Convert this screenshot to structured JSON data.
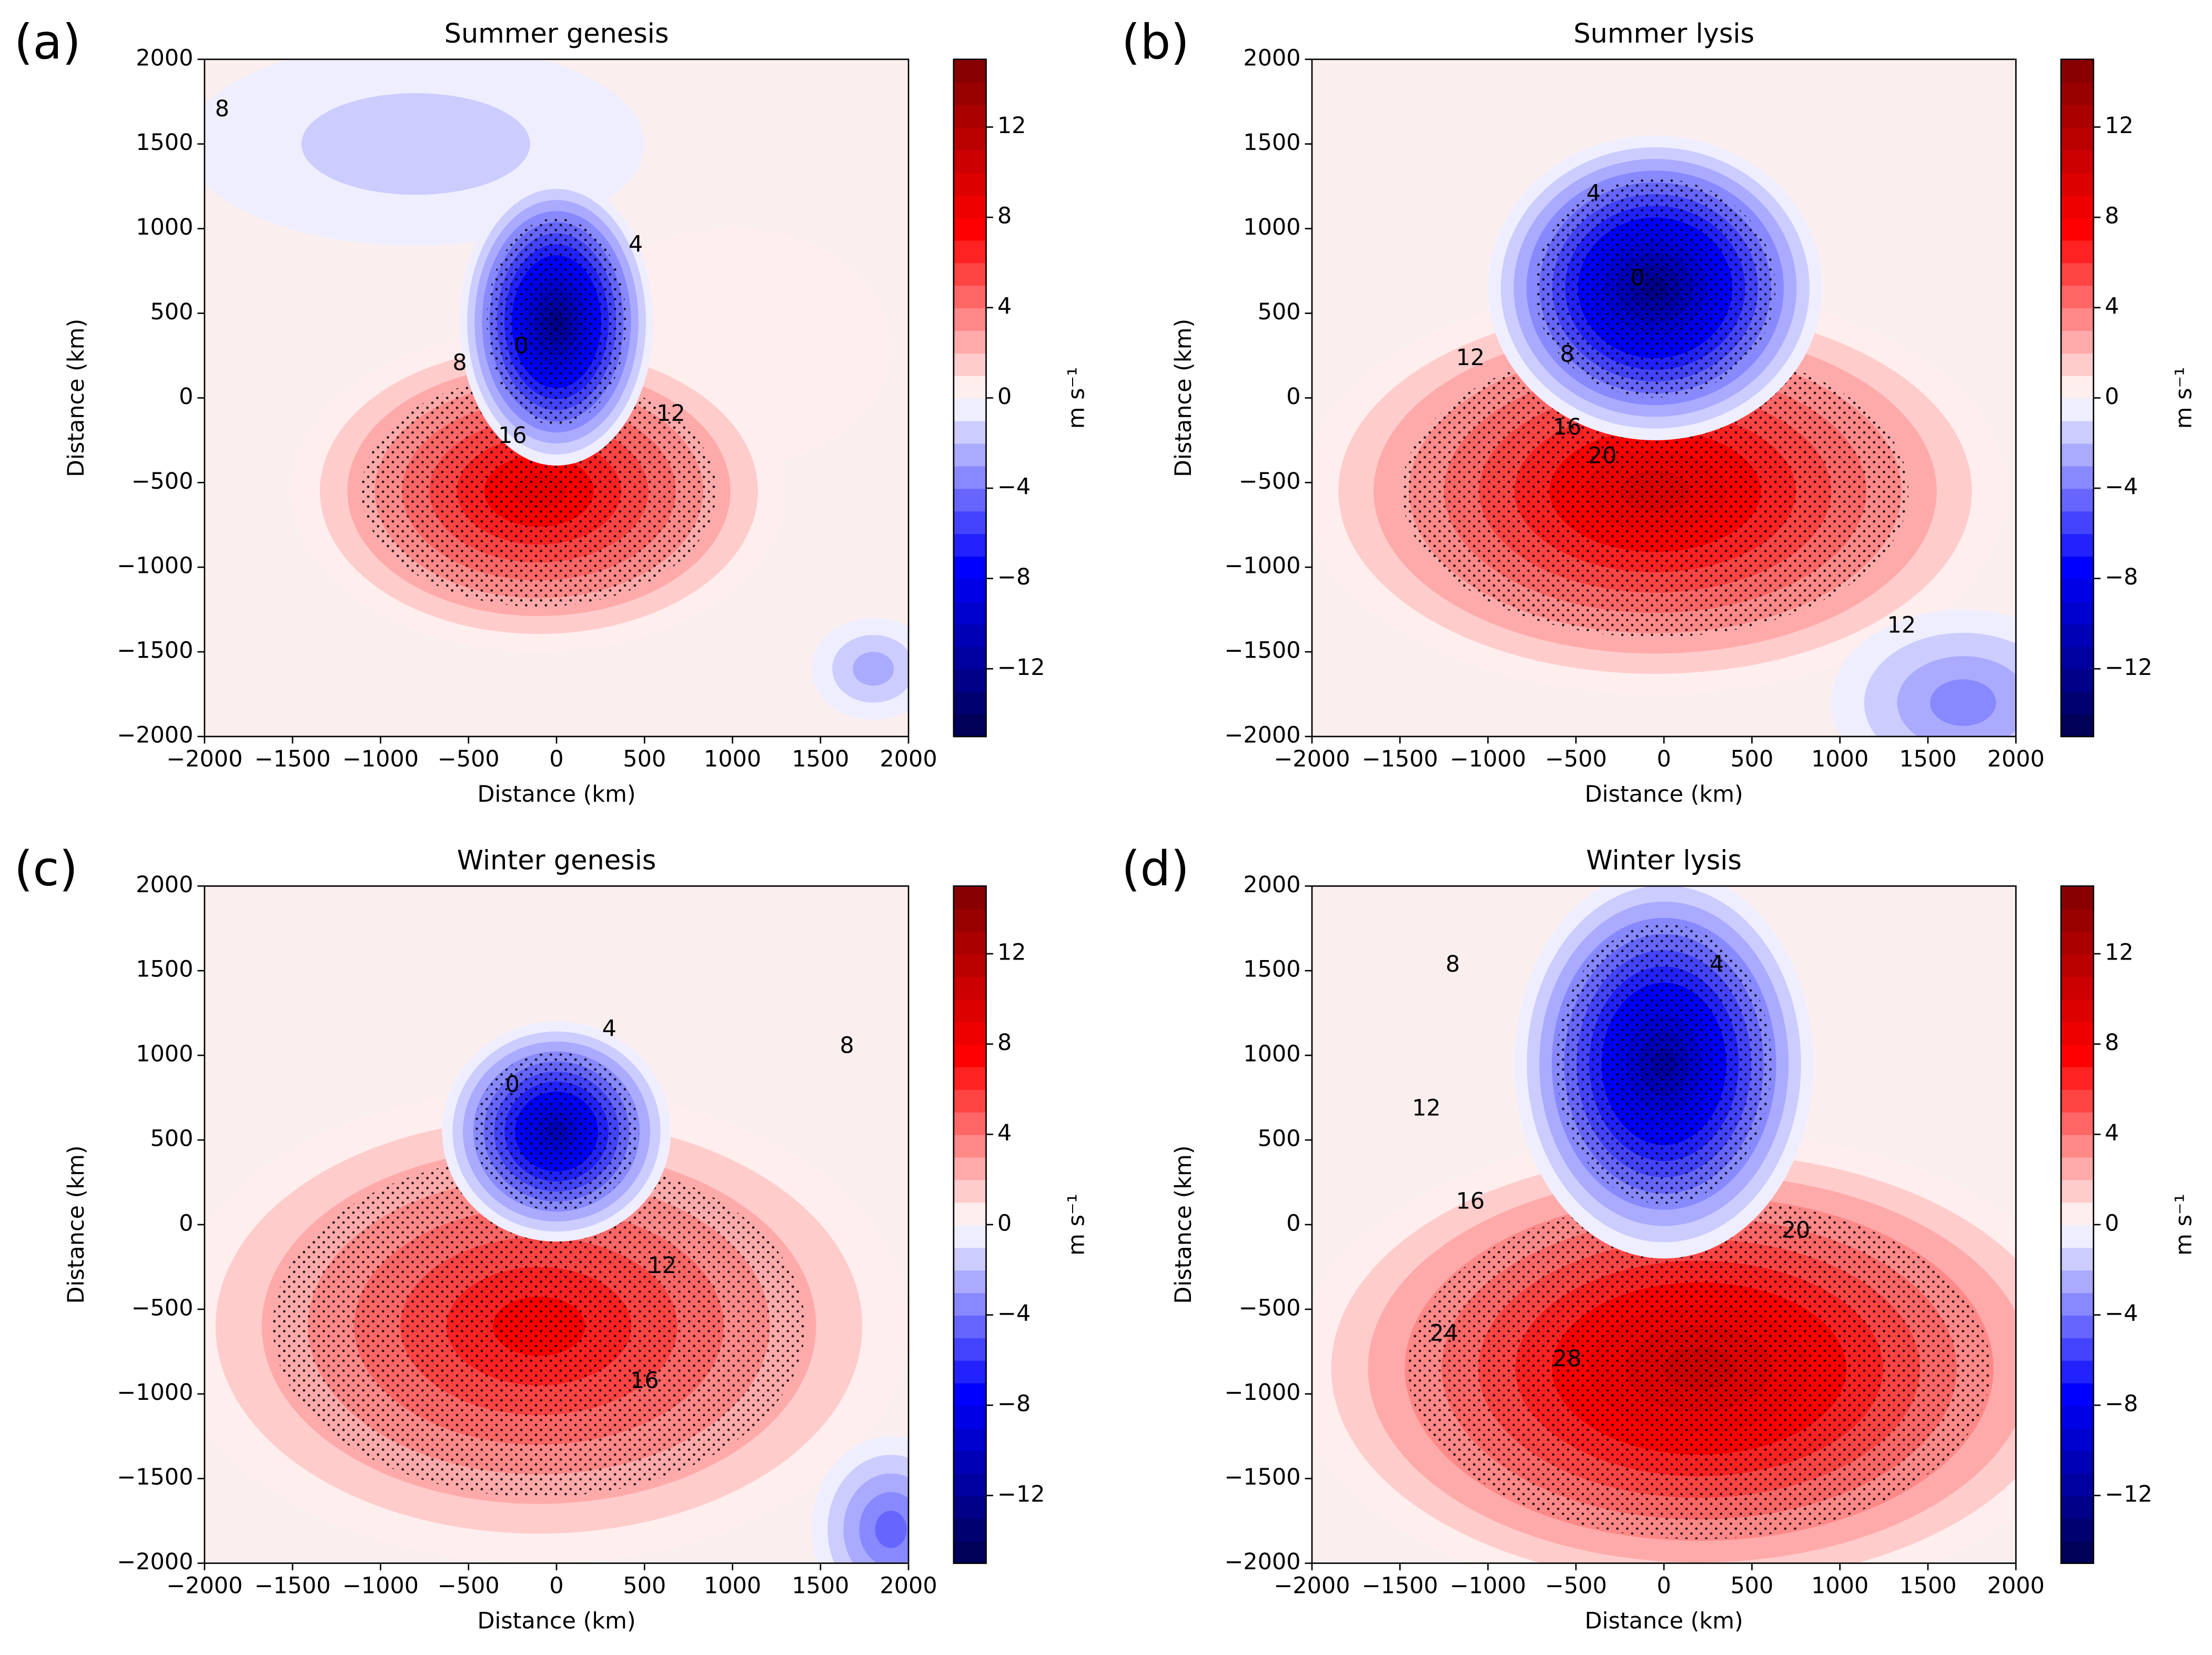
{
  "chart_data": [
    {
      "type": "contour",
      "panel_label": "(a)",
      "title": "Summer genesis",
      "xlabel": "Distance (km)",
      "ylabel": "Distance (km)",
      "xlim": [
        -2000,
        2000
      ],
      "ylim": [
        -2000,
        2000
      ],
      "xticks": [
        {
          "value": -2000,
          "label": "−2000"
        },
        {
          "value": -1500,
          "label": "−1500"
        },
        {
          "value": -1000,
          "label": "−1000"
        },
        {
          "value": -500,
          "label": "−500"
        },
        0,
        500,
        1000,
        1500,
        2000
      ],
      "yticks": [
        {
          "value": -2000,
          "label": "−2000"
        },
        {
          "value": -1500,
          "label": "−1500"
        },
        {
          "value": -1000,
          "label": "−1000"
        },
        {
          "value": -500,
          "label": "−500"
        },
        0,
        500,
        1000,
        1500,
        2000
      ],
      "field": [
        {
          "x": -800,
          "y": 1500,
          "rx": 1300,
          "ry": 600,
          "value": -2
        },
        {
          "x": 1000,
          "y": 300,
          "rx": 900,
          "ry": 700,
          "value": 1
        },
        {
          "x": -100,
          "y": -550,
          "rx": 1400,
          "ry": 950,
          "value": 9
        },
        {
          "x": 0,
          "y": 450,
          "rx": 550,
          "ry": 850,
          "value": -13
        },
        {
          "x": 1800,
          "y": -1600,
          "rx": 350,
          "ry": 300,
          "value": -3
        }
      ],
      "contour_labels": [
        8,
        4,
        0,
        8,
        12,
        16
      ],
      "colorbar": {
        "label": "m s⁻¹",
        "lim": [
          -15,
          15
        ],
        "ticks": [
          {
            "value": -12,
            "label": "−12"
          },
          {
            "value": -8,
            "label": "−8"
          },
          {
            "value": -4,
            "label": "−4"
          },
          0,
          4,
          8,
          12
        ]
      }
    },
    {
      "type": "contour",
      "panel_label": "(b)",
      "title": "Summer lysis",
      "xlabel": "Distance (km)",
      "ylabel": "Distance (km)",
      "xlim": [
        -2000,
        2000
      ],
      "ylim": [
        -2000,
        2000
      ],
      "xticks": [
        {
          "value": -2000,
          "label": "−2000"
        },
        {
          "value": -1500,
          "label": "−1500"
        },
        {
          "value": -1000,
          "label": "−1000"
        },
        {
          "value": -500,
          "label": "−500"
        },
        0,
        500,
        1000,
        1500,
        2000
      ],
      "yticks": [
        {
          "value": -2000,
          "label": "−2000"
        },
        {
          "value": -1500,
          "label": "−1500"
        },
        {
          "value": -1000,
          "label": "−1000"
        },
        {
          "value": -500,
          "label": "−500"
        },
        0,
        500,
        1000,
        1500,
        2000
      ],
      "field": [
        {
          "x": -50,
          "y": -550,
          "rx": 2000,
          "ry": 1200,
          "value": 10
        },
        {
          "x": -50,
          "y": 650,
          "rx": 950,
          "ry": 900,
          "value": -13
        },
        {
          "x": 1700,
          "y": -1800,
          "rx": 750,
          "ry": 550,
          "value": -4
        }
      ],
      "contour_labels": [
        4,
        0,
        8,
        12,
        16,
        20,
        12
      ],
      "colorbar": {
        "label": "m s⁻¹",
        "lim": [
          -15,
          15
        ],
        "ticks": [
          {
            "value": -12,
            "label": "−12"
          },
          {
            "value": -8,
            "label": "−8"
          },
          {
            "value": -4,
            "label": "−4"
          },
          0,
          4,
          8,
          12
        ]
      }
    },
    {
      "type": "contour",
      "panel_label": "(c)",
      "title": "Winter genesis",
      "xlabel": "Distance (km)",
      "ylabel": "Distance (km)",
      "xlim": [
        -2000,
        2000
      ],
      "ylim": [
        -2000,
        2000
      ],
      "xticks": [
        {
          "value": -2000,
          "label": "−2000"
        },
        {
          "value": -1500,
          "label": "−1500"
        },
        {
          "value": -1000,
          "label": "−1000"
        },
        {
          "value": -500,
          "label": "−500"
        },
        0,
        500,
        1000,
        1500,
        2000
      ],
      "yticks": [
        {
          "value": -2000,
          "label": "−2000"
        },
        {
          "value": -1500,
          "label": "−1500"
        },
        {
          "value": -1000,
          "label": "−1000"
        },
        {
          "value": -500,
          "label": "−500"
        },
        0,
        500,
        1000,
        1500,
        2000
      ],
      "field": [
        {
          "x": -100,
          "y": -600,
          "rx": 2100,
          "ry": 1400,
          "value": 8
        },
        {
          "x": 0,
          "y": 550,
          "rx": 650,
          "ry": 650,
          "value": -11
        },
        {
          "x": 1900,
          "y": -1800,
          "rx": 450,
          "ry": 550,
          "value": -5
        }
      ],
      "contour_labels": [
        4,
        0,
        8,
        12,
        16
      ],
      "colorbar": {
        "label": "m s⁻¹",
        "lim": [
          -15,
          15
        ],
        "ticks": [
          {
            "value": -12,
            "label": "−12"
          },
          {
            "value": -8,
            "label": "−8"
          },
          {
            "value": -4,
            "label": "−4"
          },
          0,
          4,
          8,
          12
        ]
      }
    },
    {
      "type": "contour",
      "panel_label": "(d)",
      "title": "Winter lysis",
      "xlabel": "Distance (km)",
      "ylabel": "Distance (km)",
      "xlim": [
        -2000,
        2000
      ],
      "ylim": [
        -2000,
        2000
      ],
      "xticks": [
        {
          "value": -2000,
          "label": "−2000"
        },
        {
          "value": -1500,
          "label": "−1500"
        },
        {
          "value": -1000,
          "label": "−1000"
        },
        {
          "value": -500,
          "label": "−500"
        },
        0,
        500,
        1000,
        1500,
        2000
      ],
      "yticks": [
        {
          "value": -2000,
          "label": "−2000"
        },
        {
          "value": -1500,
          "label": "−1500"
        },
        {
          "value": -1000,
          "label": "−1000"
        },
        {
          "value": -500,
          "label": "−500"
        },
        0,
        500,
        1000,
        1500,
        2000
      ],
      "field": [
        {
          "x": 200,
          "y": -850,
          "rx": 2300,
          "ry": 1400,
          "value": 11
        },
        {
          "x": 0,
          "y": 950,
          "rx": 850,
          "ry": 1150,
          "value": -12
        }
      ],
      "contour_labels": [
        8,
        4,
        12,
        16,
        20,
        24,
        28
      ],
      "colorbar": {
        "label": "m s⁻¹",
        "lim": [
          -15,
          15
        ],
        "ticks": [
          {
            "value": -12,
            "label": "−12"
          },
          {
            "value": -8,
            "label": "−8"
          },
          {
            "value": -4,
            "label": "−4"
          },
          0,
          4,
          8,
          12
        ]
      }
    }
  ]
}
